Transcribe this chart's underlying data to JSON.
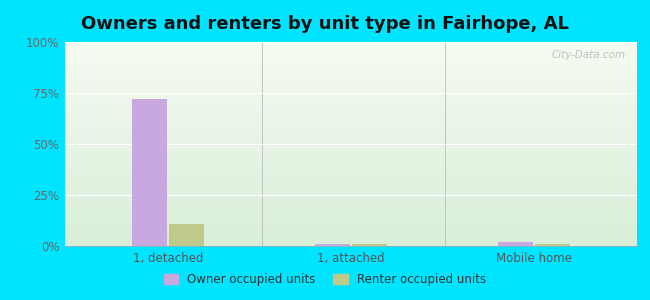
{
  "title": "Owners and renters by unit type in Fairhope, AL",
  "categories": [
    "1, detached",
    "1, attached",
    "Mobile home"
  ],
  "owner_values": [
    72,
    1.0,
    1.8
  ],
  "renter_values": [
    11,
    1.0,
    1.0
  ],
  "owner_color": "#c9a8e0",
  "renter_color": "#bec98a",
  "owner_label": "Owner occupied units",
  "renter_label": "Renter occupied units",
  "ylim": [
    0,
    100
  ],
  "yticks": [
    0,
    25,
    50,
    75,
    100
  ],
  "ytick_labels": [
    "0%",
    "25%",
    "50%",
    "75%",
    "100%"
  ],
  "outer_bg": "#00e5ff",
  "plot_bg_top": "#f5faf0",
  "plot_bg_bottom": "#d8eed8",
  "title_fontsize": 13,
  "watermark": "City-Data.com"
}
